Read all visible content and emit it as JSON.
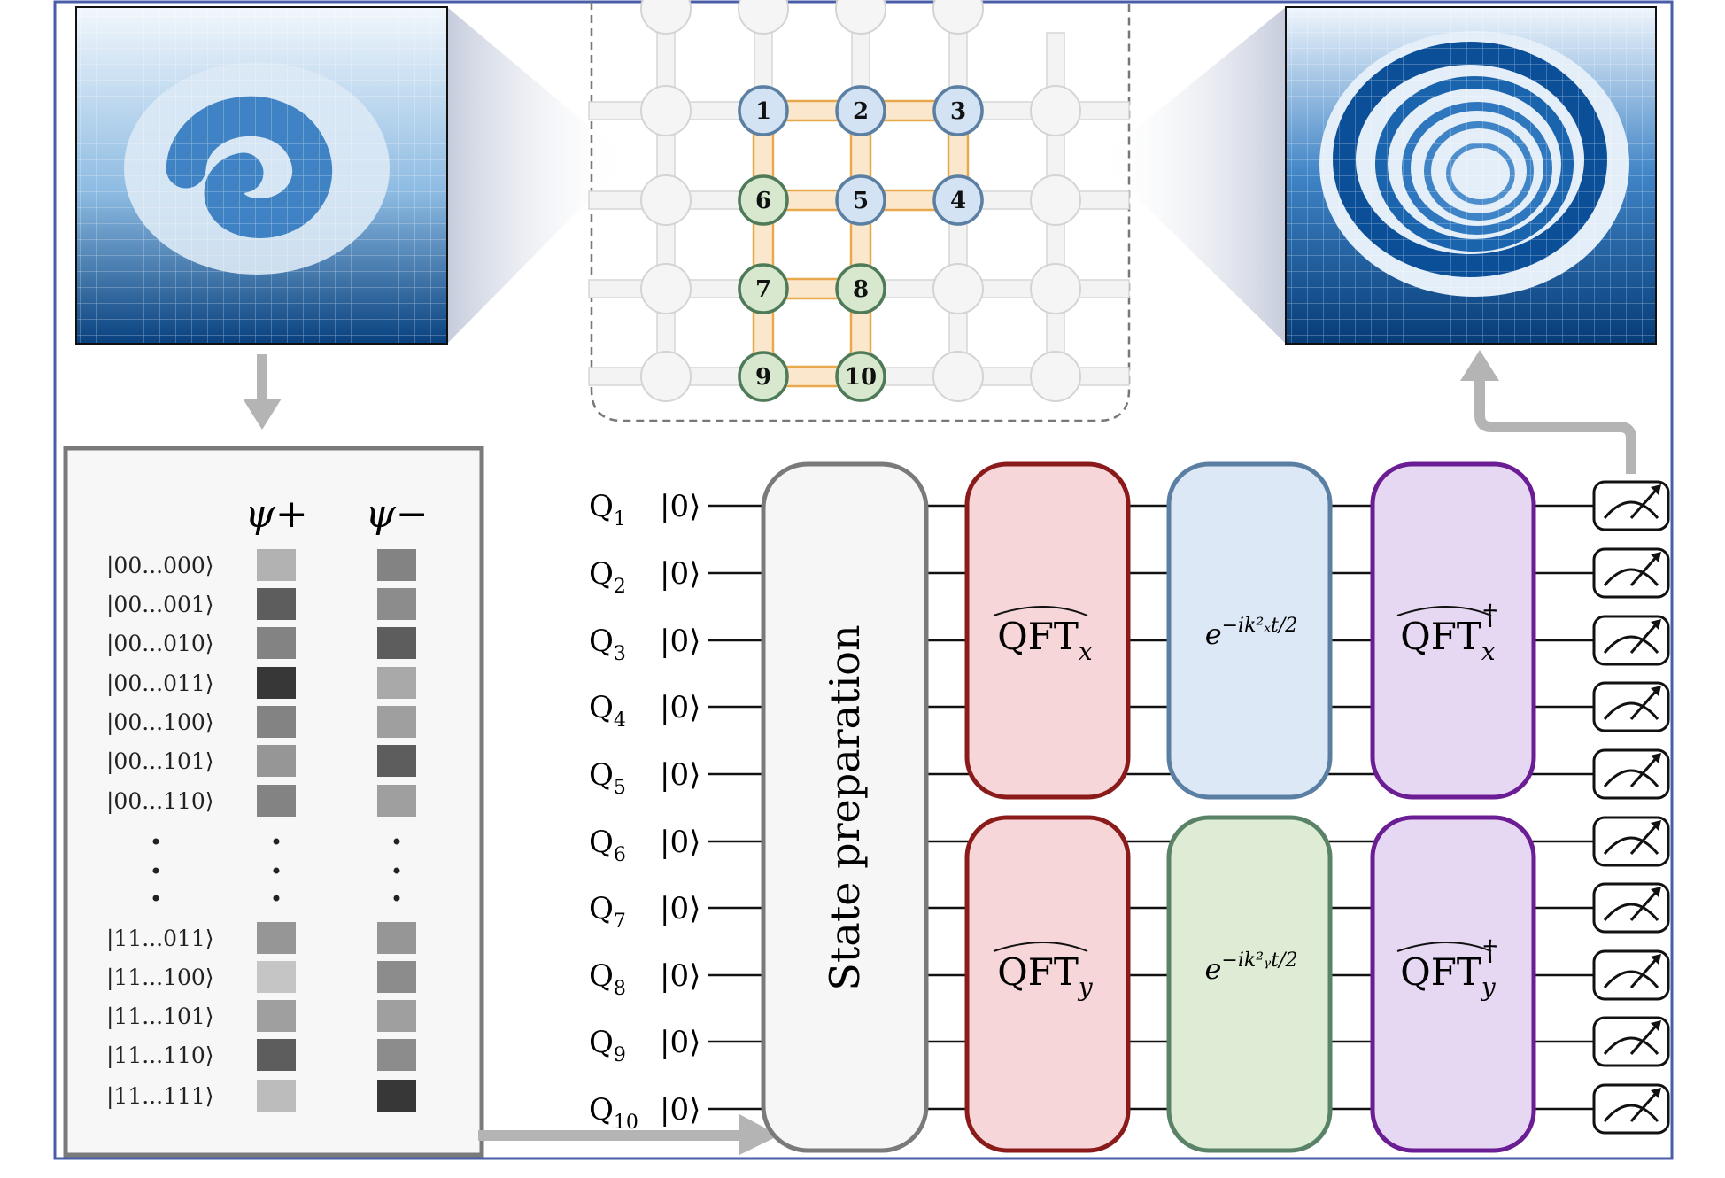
{
  "lattice_nodes": [
    {
      "label": "1",
      "group": "blue"
    },
    {
      "label": "2",
      "group": "blue"
    },
    {
      "label": "3",
      "group": "blue"
    },
    {
      "label": "4",
      "group": "blue"
    },
    {
      "label": "5",
      "group": "blue"
    },
    {
      "label": "6",
      "group": "green"
    },
    {
      "label": "7",
      "group": "green"
    },
    {
      "label": "8",
      "group": "green"
    },
    {
      "label": "9",
      "group": "green"
    },
    {
      "label": "10",
      "group": "green"
    }
  ],
  "amplitude_table": {
    "columns": [
      "ψ+",
      "ψ−"
    ],
    "rows": [
      {
        "state": "|00...000⟩",
        "psi_plus": 0.3,
        "psi_minus": 0.55
      },
      {
        "state": "|00...001⟩",
        "psi_plus": 0.75,
        "psi_minus": 0.5
      },
      {
        "state": "|00...010⟩",
        "psi_plus": 0.55,
        "psi_minus": 0.75
      },
      {
        "state": "|00...011⟩",
        "psi_plus": 0.95,
        "psi_minus": 0.35
      },
      {
        "state": "|00...100⟩",
        "psi_plus": 0.55,
        "psi_minus": 0.4
      },
      {
        "state": "|00...101⟩",
        "psi_plus": 0.45,
        "psi_minus": 0.75
      },
      {
        "state": "|00...110⟩",
        "psi_plus": 0.55,
        "psi_minus": 0.4
      },
      {
        "state": "|11...011⟩",
        "psi_plus": 0.45,
        "psi_minus": 0.45
      },
      {
        "state": "|11...100⟩",
        "psi_plus": 0.2,
        "psi_minus": 0.5
      },
      {
        "state": "|11...101⟩",
        "psi_plus": 0.4,
        "psi_minus": 0.4
      },
      {
        "state": "|11...110⟩",
        "psi_plus": 0.75,
        "psi_minus": 0.5
      },
      {
        "state": "|11...111⟩",
        "psi_plus": 0.25,
        "psi_minus": 0.95
      }
    ]
  },
  "circuit": {
    "qubits": [
      {
        "label": "Q",
        "index": "1",
        "ket": "|0⟩"
      },
      {
        "label": "Q",
        "index": "2",
        "ket": "|0⟩"
      },
      {
        "label": "Q",
        "index": "3",
        "ket": "|0⟩"
      },
      {
        "label": "Q",
        "index": "4",
        "ket": "|0⟩"
      },
      {
        "label": "Q",
        "index": "5",
        "ket": "|0⟩"
      },
      {
        "label": "Q",
        "index": "6",
        "ket": "|0⟩"
      },
      {
        "label": "Q",
        "index": "7",
        "ket": "|0⟩"
      },
      {
        "label": "Q",
        "index": "8",
        "ket": "|0⟩"
      },
      {
        "label": "Q",
        "index": "9",
        "ket": "|0⟩"
      },
      {
        "label": "Q",
        "index": "10",
        "ket": "|0⟩"
      }
    ],
    "state_prep_label": "State preparation",
    "gates": {
      "qft_x": {
        "base": "QFT",
        "sub": "x"
      },
      "qft_y": {
        "base": "QFT",
        "sub": "y"
      },
      "evo_x": {
        "base": "e",
        "exp": "−ik²ₓt/2"
      },
      "evo_y": {
        "base": "e",
        "exp": "−ik²ᵧt/2"
      },
      "iqft_x": {
        "base": "QFT",
        "sub": "x",
        "sup": "†"
      },
      "iqft_y": {
        "base": "QFT",
        "sub": "y",
        "sup": "†"
      }
    }
  },
  "colors": {
    "qft_fill": "#f6d6d8",
    "qft_stroke": "#8b1a1a",
    "evo_x_fill": "#dce8f5",
    "evo_x_stroke": "#5a7fa3",
    "evo_y_fill": "#deecd6",
    "evo_y_stroke": "#5a8266",
    "iqft_fill": "#e6d8f3",
    "iqft_stroke": "#6b1d94",
    "frame": "#4a5ea8",
    "dark_blue": "#0a4a93"
  }
}
